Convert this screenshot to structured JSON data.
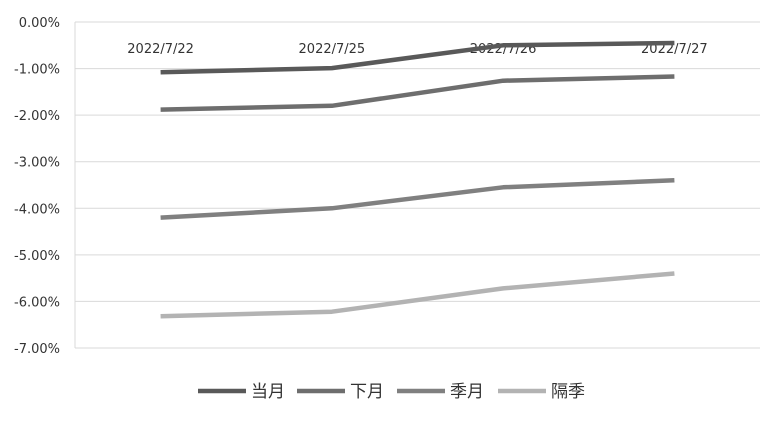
{
  "chart_data": {
    "type": "line",
    "categories": [
      "2022/7/22",
      "2022/7/25",
      "2022/7/26",
      "2022/7/27"
    ],
    "series": [
      {
        "name": "当月",
        "values": [
          -1.08,
          -0.99,
          -0.5,
          -0.45
        ],
        "color": "#595959"
      },
      {
        "name": "下月",
        "values": [
          -1.88,
          -1.8,
          -1.26,
          -1.17
        ],
        "color": "#6e6e6e"
      },
      {
        "name": "季月",
        "values": [
          -4.2,
          -4.0,
          -3.55,
          -3.4
        ],
        "color": "#808080"
      },
      {
        "name": "隔季",
        "values": [
          -6.32,
          -6.22,
          -5.72,
          -5.4
        ],
        "color": "#b3b3b3"
      }
    ],
    "yticks": [
      "0.00%",
      "-1.00%",
      "-2.00%",
      "-3.00%",
      "-4.00%",
      "-5.00%",
      "-6.00%",
      "-7.00%"
    ],
    "ylim": [
      -7,
      0
    ],
    "grid": true,
    "legend_position": "bottom",
    "title": "",
    "xlabel": "",
    "ylabel": ""
  }
}
